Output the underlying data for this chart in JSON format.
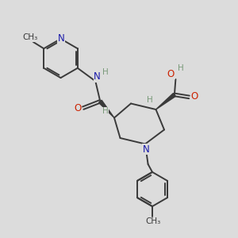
{
  "background_color": "#dcdcdc",
  "bond_color": "#3a3a3a",
  "N_color": "#1a1aaa",
  "O_color": "#cc2200",
  "H_color": "#7a9a7a",
  "line_width": 1.4,
  "figsize": [
    3.0,
    3.0
  ],
  "dpi": 100,
  "xlim": [
    0,
    10
  ],
  "ylim": [
    0,
    10
  ]
}
